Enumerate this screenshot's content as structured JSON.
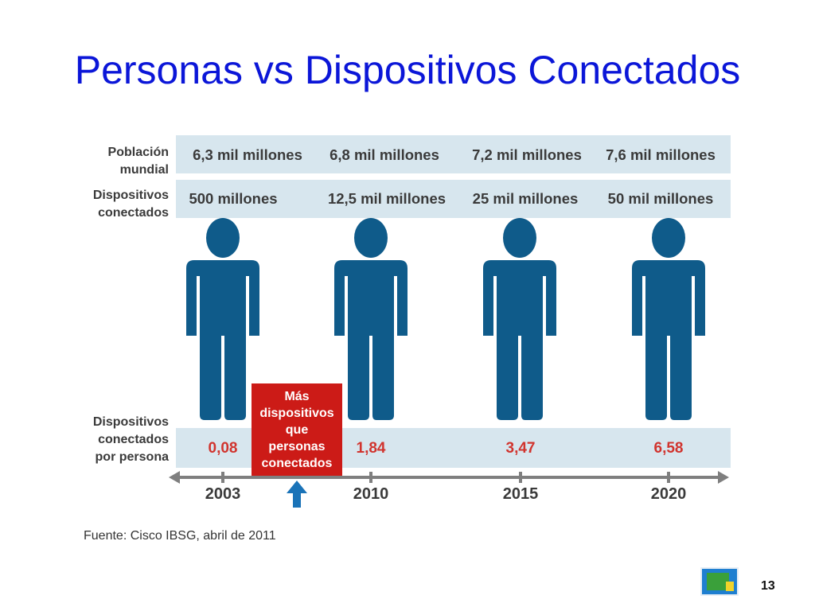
{
  "title": "Personas vs Dispositivos Conectados",
  "row_labels": {
    "population": [
      "Población",
      "mundial"
    ],
    "devices": [
      "Dispositivos",
      "conectados"
    ],
    "per_person": [
      "Dispositivos",
      "conectados",
      "por persona"
    ]
  },
  "callout": [
    "Más",
    "dispositivos",
    "que",
    "personas",
    "conectados"
  ],
  "source": "Fuente: Cisco IBSG, abril de 2011",
  "page_number": "13",
  "colors": {
    "title": "#0b16d8",
    "band": "#d7e6ee",
    "figure": "#0f5b8a",
    "callout": "#cc1b17",
    "red_value": "#d1342e",
    "axis": "#7f7f7f",
    "arrow": "#1a73b8"
  },
  "chart_data": {
    "type": "table",
    "x": [
      "2003",
      "2010",
      "2015",
      "2020"
    ],
    "population": [
      "6,3 mil millones",
      "6,8 mil millones",
      "7,2 mil millones",
      "7,6 mil millones"
    ],
    "devices": [
      "500 millones",
      "12,5 mil millones",
      "25 mil millones",
      "50 mil millones"
    ],
    "devices_per_person": [
      "0,08",
      "1,84",
      "3,47",
      "6,58"
    ],
    "devices_per_person_values": [
      0.08,
      1.84,
      3.47,
      6.58
    ]
  }
}
